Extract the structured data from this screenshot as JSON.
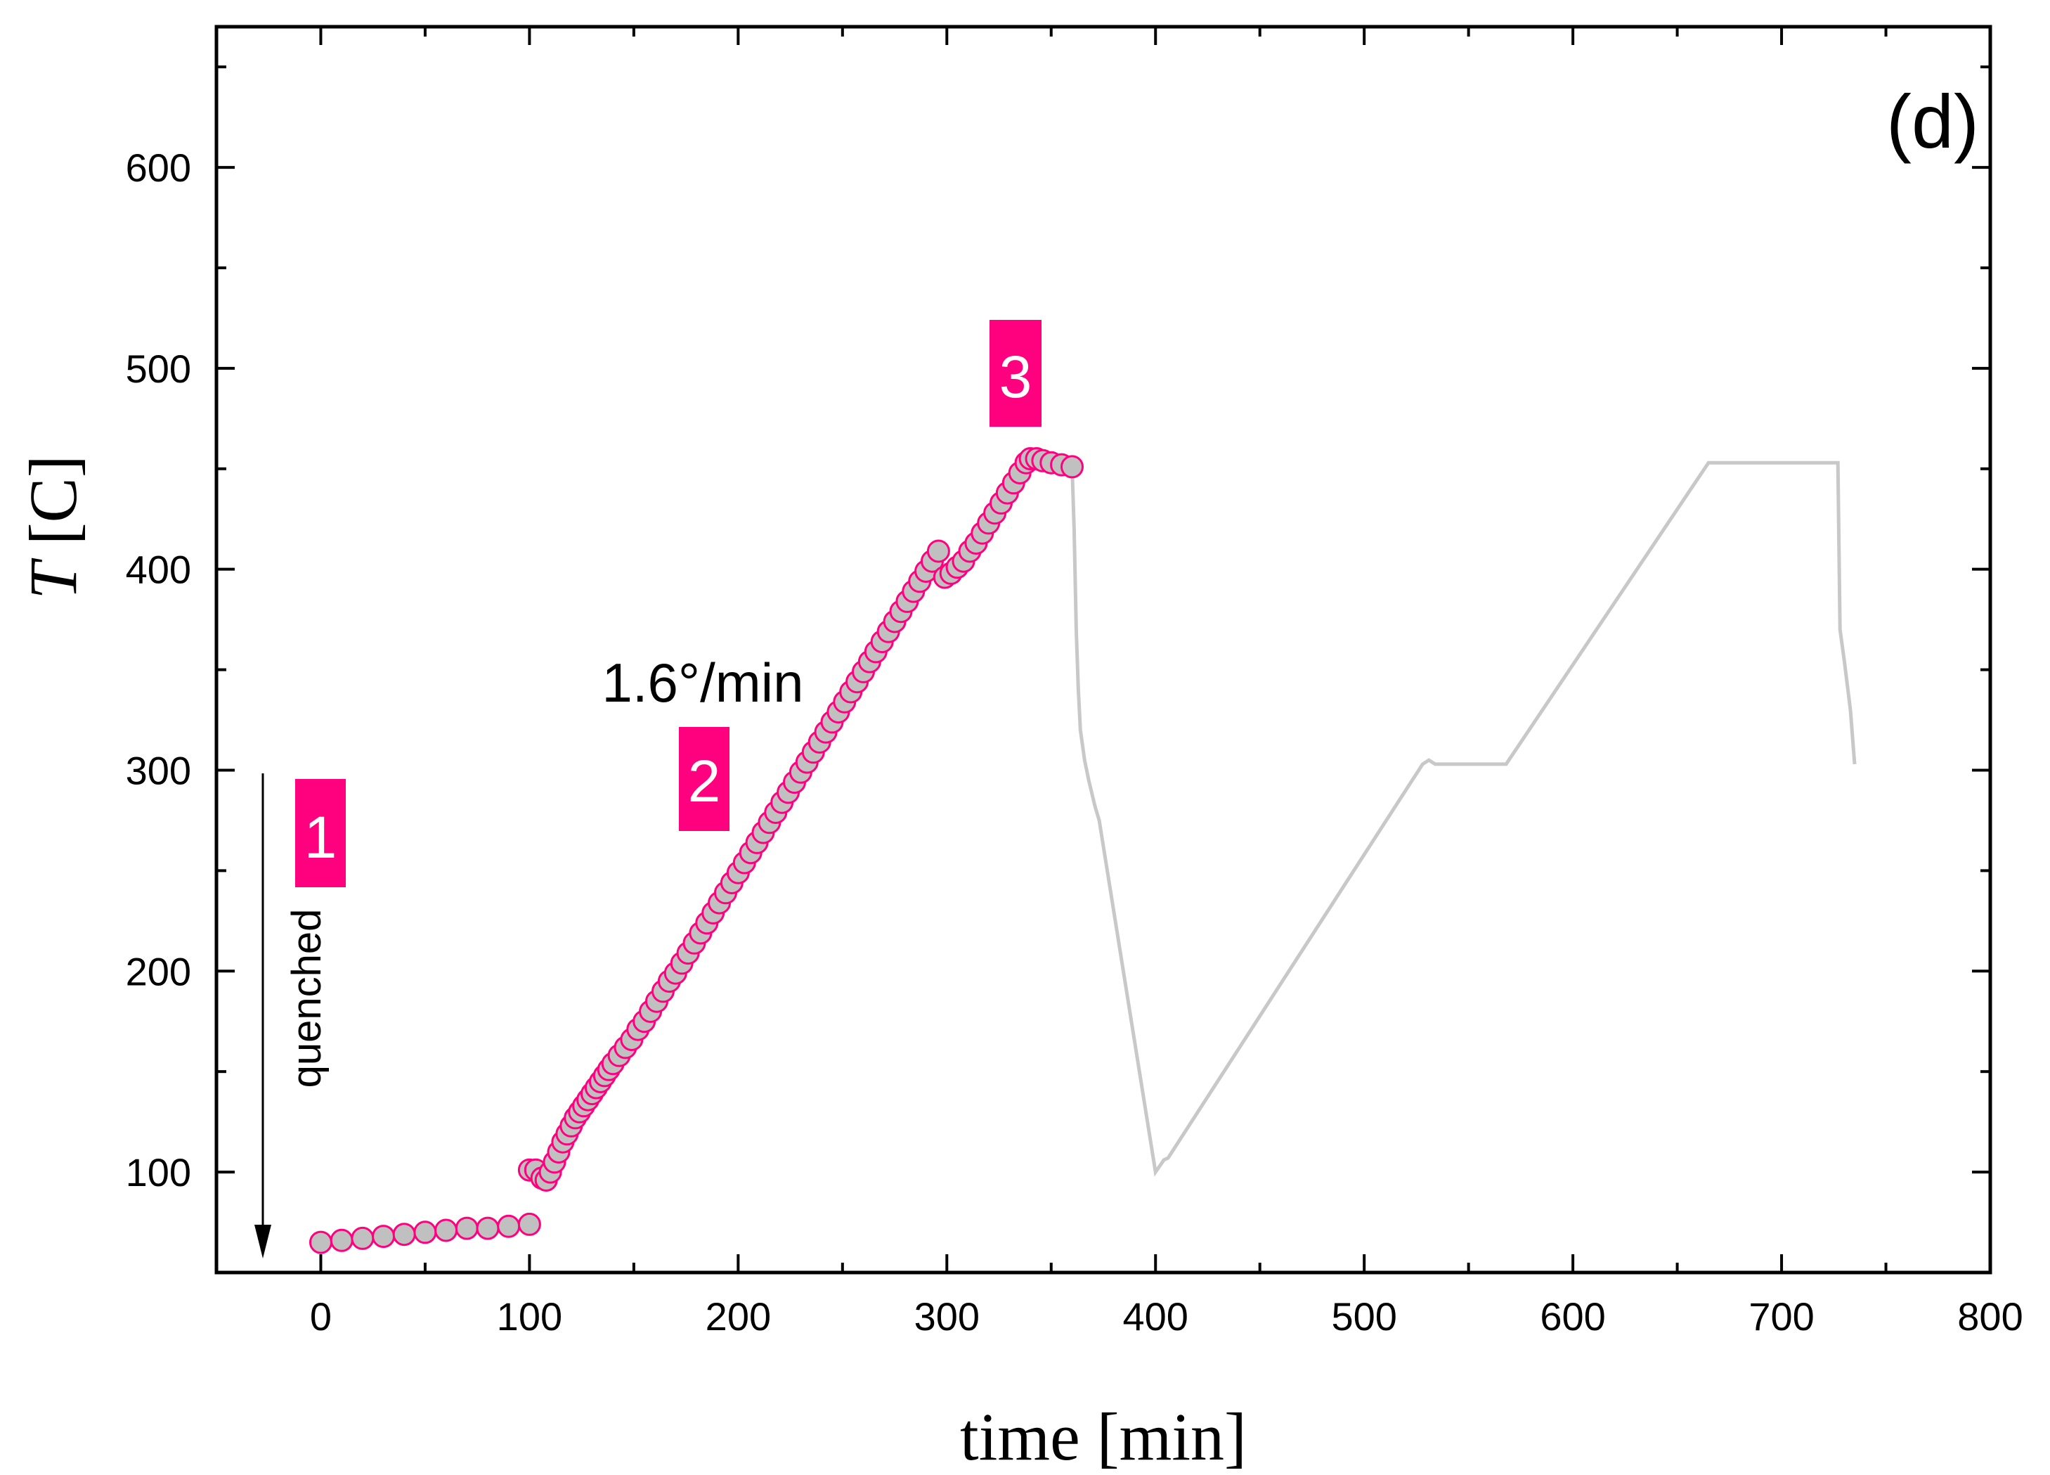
{
  "chart_data": {
    "type": "scatter",
    "panel_label": "(d)",
    "xlabel": "time [min]",
    "ylabel_italic": "T",
    "ylabel_rest": " [C]",
    "xlim": [
      -50,
      800
    ],
    "ylim": [
      50,
      670
    ],
    "xticks": [
      0,
      100,
      200,
      300,
      400,
      500,
      600,
      700,
      800
    ],
    "yticks": [
      100,
      200,
      300,
      400,
      500,
      600
    ],
    "x_minor_step": 50,
    "y_minor_step": 50,
    "colors": {
      "axis": "#000000",
      "marker_fill": "#c0c0c0",
      "marker_edge": "#ff007f",
      "profile_line": "#c8c8c8",
      "label_box": "#ff007f"
    },
    "series": [
      {
        "kind": "markers",
        "points": [
          [
            0,
            65
          ],
          [
            10,
            66
          ],
          [
            20,
            67
          ],
          [
            30,
            68
          ],
          [
            40,
            69
          ],
          [
            50,
            70
          ],
          [
            60,
            71
          ],
          [
            70,
            72
          ],
          [
            80,
            72
          ],
          [
            90,
            73
          ],
          [
            100,
            74
          ],
          [
            100,
            101
          ],
          [
            103,
            101
          ],
          [
            106,
            97
          ],
          [
            108,
            96
          ],
          [
            110,
            100
          ],
          [
            112,
            105
          ],
          [
            114,
            110
          ],
          [
            116,
            115
          ],
          [
            118,
            119
          ],
          [
            120,
            123
          ],
          [
            122,
            127
          ],
          [
            124,
            130
          ],
          [
            126,
            133
          ],
          [
            128,
            136
          ],
          [
            130,
            139
          ],
          [
            132,
            142
          ],
          [
            134,
            145
          ],
          [
            136,
            148
          ],
          [
            138,
            151
          ],
          [
            140,
            154
          ],
          [
            143,
            158
          ],
          [
            146,
            162
          ],
          [
            149,
            166
          ],
          [
            152,
            171
          ],
          [
            155,
            175
          ],
          [
            158,
            180
          ],
          [
            161,
            185
          ],
          [
            164,
            190
          ],
          [
            167,
            195
          ],
          [
            170,
            199
          ],
          [
            173,
            204
          ],
          [
            176,
            209
          ],
          [
            179,
            214
          ],
          [
            182,
            219
          ],
          [
            185,
            224
          ],
          [
            188,
            229
          ],
          [
            191,
            234
          ],
          [
            194,
            239
          ],
          [
            197,
            244
          ],
          [
            200,
            249
          ],
          [
            203,
            254
          ],
          [
            206,
            259
          ],
          [
            209,
            264
          ],
          [
            212,
            269
          ],
          [
            215,
            274
          ],
          [
            218,
            279
          ],
          [
            221,
            284
          ],
          [
            224,
            289
          ],
          [
            227,
            294
          ],
          [
            230,
            299
          ],
          [
            233,
            304
          ],
          [
            236,
            309
          ],
          [
            239,
            314
          ],
          [
            242,
            319
          ],
          [
            245,
            324
          ],
          [
            248,
            329
          ],
          [
            251,
            334
          ],
          [
            254,
            339
          ],
          [
            257,
            344
          ],
          [
            260,
            349
          ],
          [
            263,
            354
          ],
          [
            266,
            359
          ],
          [
            269,
            364
          ],
          [
            272,
            369
          ],
          [
            275,
            374
          ],
          [
            278,
            379
          ],
          [
            281,
            384
          ],
          [
            284,
            389
          ],
          [
            287,
            394
          ],
          [
            290,
            399
          ],
          [
            293,
            404
          ],
          [
            296,
            409
          ],
          [
            299,
            396
          ],
          [
            302,
            398
          ],
          [
            305,
            401
          ],
          [
            308,
            404
          ],
          [
            311,
            409
          ],
          [
            314,
            413
          ],
          [
            317,
            418
          ],
          [
            320,
            423
          ],
          [
            323,
            428
          ],
          [
            326,
            433
          ],
          [
            329,
            438
          ],
          [
            332,
            443
          ],
          [
            335,
            448
          ],
          [
            338,
            453
          ],
          [
            340,
            455
          ],
          [
            343,
            455
          ],
          [
            346,
            454
          ],
          [
            350,
            453
          ],
          [
            355,
            452
          ],
          [
            360,
            451
          ]
        ]
      },
      {
        "kind": "line",
        "points": [
          [
            360,
            451
          ],
          [
            361,
            420
          ],
          [
            362,
            370
          ],
          [
            363,
            340
          ],
          [
            364,
            320
          ],
          [
            366,
            305
          ],
          [
            368,
            295
          ],
          [
            371,
            282
          ],
          [
            373,
            275
          ],
          [
            400,
            100
          ],
          [
            402,
            103
          ],
          [
            404,
            106
          ],
          [
            406,
            107
          ],
          [
            528,
            303
          ],
          [
            531,
            305
          ],
          [
            534,
            303
          ],
          [
            568,
            303
          ],
          [
            665,
            453
          ],
          [
            727,
            453
          ],
          [
            728,
            370
          ],
          [
            730,
            355
          ],
          [
            733,
            330
          ],
          [
            735,
            303
          ]
        ]
      }
    ],
    "annotations": {
      "rate_label": "1.6°/min",
      "quenched_label": "quenched",
      "step_labels": [
        "1",
        "2",
        "3"
      ]
    }
  }
}
